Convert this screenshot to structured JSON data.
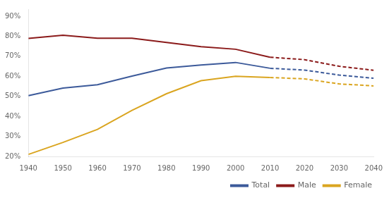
{
  "chart_data": {
    "type": "line",
    "series": [
      {
        "name": "Total",
        "color": "#3C5A9A",
        "line_style": "solid",
        "x": [
          1940,
          1950,
          1960,
          1970,
          1980,
          1990,
          2000,
          2010
        ],
        "values": [
          0.503,
          0.541,
          0.558,
          0.601,
          0.641,
          0.656,
          0.669,
          0.64
        ]
      },
      {
        "name": "Male",
        "color": "#8B1A1A",
        "line_style": "solid",
        "x": [
          1940,
          1950,
          1960,
          1970,
          1980,
          1990,
          2000,
          2010
        ],
        "values": [
          0.789,
          0.805,
          0.79,
          0.79,
          0.769,
          0.748,
          0.735,
          0.695
        ]
      },
      {
        "name": "Female",
        "color": "#DAA520",
        "line_style": "solid",
        "x": [
          1940,
          1950,
          1960,
          1970,
          1980,
          1990,
          2000,
          2010
        ],
        "values": [
          0.21,
          0.27,
          0.335,
          0.43,
          0.513,
          0.578,
          0.6,
          0.594
        ]
      },
      {
        "color": "#3C5A9A",
        "line_style": "dashed",
        "x": [
          2010,
          2020,
          2030,
          2040
        ],
        "values": [
          0.64,
          0.631,
          0.606,
          0.59
        ]
      },
      {
        "color": "#8B1A1A",
        "line_style": "dashed",
        "x": [
          2010,
          2020,
          2030,
          2040
        ],
        "values": [
          0.695,
          0.683,
          0.65,
          0.63
        ]
      },
      {
        "color": "#DAA520",
        "line_style": "dashed",
        "x": [
          2010,
          2020,
          2030,
          2040
        ],
        "values": [
          0.594,
          0.587,
          0.562,
          0.552
        ]
      }
    ],
    "xlim": [
      1940,
      2040
    ],
    "xticks": [
      1940,
      1950,
      1960,
      1970,
      1980,
      1990,
      2000,
      2010,
      2020,
      2030,
      2040
    ],
    "ylim": [
      0.2,
      0.935
    ],
    "yticks": [
      {
        "value": 0.2,
        "label": "20%"
      },
      {
        "value": 0.3,
        "label": "30%"
      },
      {
        "value": 0.4,
        "label": "40%"
      },
      {
        "value": 0.5,
        "label": "50%"
      },
      {
        "value": 0.6,
        "label": "60%"
      },
      {
        "value": 0.7,
        "label": "70%"
      },
      {
        "value": 0.8,
        "label": "80%"
      },
      {
        "value": 0.9,
        "label": "90%"
      }
    ],
    "grid": false,
    "legend": "lower right"
  }
}
